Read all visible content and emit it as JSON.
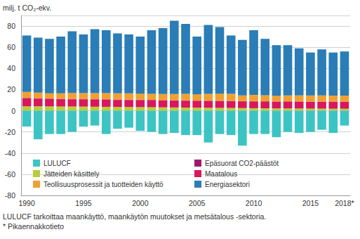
{
  "chart_data": {
    "type": "bar",
    "stacked": true,
    "ylabel": "milj. t CO₂-ekv.",
    "annotations": [
      "LULUCF tarkoittaa maankäyttö, maankäytön muutokset ja metsätalous -sektoria.",
      "* Pikaennakkotieto"
    ],
    "categories": [
      "1990",
      null,
      null,
      null,
      null,
      "1995",
      null,
      null,
      null,
      null,
      "2000",
      null,
      null,
      null,
      null,
      "2005",
      null,
      null,
      null,
      null,
      "2010",
      null,
      null,
      null,
      null,
      "2015",
      null,
      null,
      "2018*"
    ],
    "ylim": [
      -80,
      90
    ],
    "yticks": [
      -80,
      -60,
      -40,
      -20,
      0,
      20,
      40,
      60,
      80
    ],
    "grid": true,
    "legend": "bottom-left",
    "series": [
      {
        "name": "Jätteiden käsittely",
        "color": "#b9cc3a",
        "values": [
          4.2,
          4.2,
          4.1,
          4.0,
          4.0,
          3.9,
          3.8,
          3.7,
          3.6,
          3.5,
          3.4,
          3.3,
          3.2,
          3.1,
          3.0,
          2.9,
          2.8,
          2.7,
          2.6,
          2.5,
          2.4,
          2.3,
          2.2,
          2.2,
          2.1,
          2.0,
          2.0,
          1.9,
          1.9
        ]
      },
      {
        "name": "Maatalous",
        "color": "#d8175c",
        "values": [
          7.6,
          7.3,
          7.0,
          6.9,
          6.8,
          6.7,
          6.7,
          6.7,
          6.6,
          6.6,
          6.6,
          6.6,
          6.5,
          6.5,
          6.5,
          6.4,
          6.4,
          6.4,
          6.4,
          6.4,
          6.4,
          6.4,
          6.4,
          6.5,
          6.5,
          6.5,
          6.5,
          6.6,
          6.6
        ]
      },
      {
        "name": "Epäsuorat CO2-päästöt",
        "color": "#a0186c",
        "values": [
          0.4,
          0.4,
          0.4,
          0.4,
          0.4,
          0.4,
          0.4,
          0.4,
          0.4,
          0.4,
          0.4,
          0.4,
          0.3,
          0.3,
          0.3,
          0.3,
          0.3,
          0.3,
          0.3,
          0.3,
          0.3,
          0.3,
          0.2,
          0.2,
          0.2,
          0.2,
          0.2,
          0.2,
          0.2
        ]
      },
      {
        "name": "Teollisuusprosessit ja tuotteiden käyttö",
        "color": "#f0a030",
        "values": [
          5.6,
          5.2,
          5.0,
          5.2,
          5.6,
          5.6,
          5.7,
          5.8,
          5.8,
          5.9,
          5.8,
          5.7,
          5.8,
          5.9,
          6.2,
          5.9,
          6.5,
          6.8,
          6.6,
          5.2,
          5.8,
          5.7,
          5.4,
          5.6,
          5.6,
          5.7,
          5.8,
          5.6,
          5.6
        ]
      },
      {
        "name": "Energiasektori",
        "color": "#2a7db6",
        "values": [
          53.2,
          51.9,
          51.5,
          53.5,
          58.2,
          55.4,
          60.4,
          59.4,
          56.6,
          55.6,
          53.8,
          60.0,
          62.2,
          69.2,
          66.0,
          54.5,
          65.0,
          62.8,
          55.1,
          52.6,
          61.1,
          53.3,
          47.8,
          47.5,
          44.6,
          40.6,
          43.5,
          40.7,
          41.7
        ]
      },
      {
        "name": "LULUCF",
        "color": "#3cc4c4",
        "values": [
          -15,
          -27,
          -22,
          -22,
          -20,
          -15,
          -14,
          -22,
          -17,
          -16,
          -19,
          -20,
          -22,
          -21,
          -23,
          -23,
          -30,
          -22,
          -23,
          -33,
          -22,
          -22,
          -25,
          -20,
          -21,
          -20,
          -18,
          -21,
          -14
        ]
      }
    ]
  }
}
